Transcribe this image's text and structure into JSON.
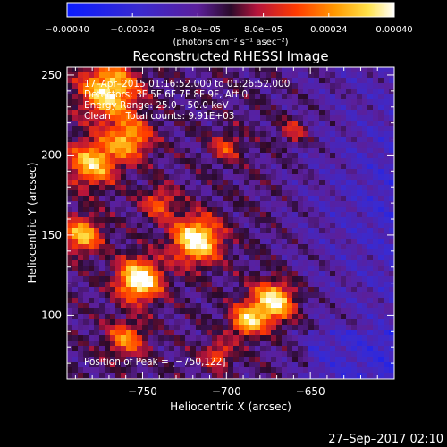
{
  "chart_data": {
    "type": "heatmap",
    "title": "Reconstructed RHESSI Image",
    "xlabel": "Heliocentric X (arcsec)",
    "ylabel": "Heliocentric Y (arcsec)",
    "xlim": [
      -795,
      -600
    ],
    "ylim": [
      60,
      255
    ],
    "x_ticks": [
      -750,
      -700,
      -650
    ],
    "x_tick_labels": [
      "−750",
      "−700",
      "−650"
    ],
    "y_ticks": [
      100,
      150,
      200,
      250
    ],
    "y_tick_labels": [
      "100",
      "150",
      "200",
      "250"
    ],
    "colorbar": {
      "range": [
        -0.0004,
        0.0004
      ],
      "ticks": [
        -0.0004,
        -0.00024,
        -8e-05,
        8e-05,
        0.00024,
        0.0004
      ],
      "tick_labels": [
        "−0.00040",
        "−0.00024",
        "−8.0e−05",
        "8.0e−05",
        "0.00024",
        "0.00040"
      ],
      "units": "(photons cm⁻² s⁻¹ asec⁻²)"
    },
    "annotations": [
      "17–Apr–2015 01:16:52.000 to 01:26:52.000",
      "Detectors: 3F 5F 6F 7F 8F 9F, Att 0",
      "Energy Range: 25.0 – 50.0 keV",
      "Clean     Total counts: 9.91E+03"
    ],
    "peak_label": "Position of Peak = [−750,122]",
    "grid": false
  },
  "footer": {
    "timestamp": "27–Sep–2017 02:10"
  },
  "colors": {
    "background": "#000000",
    "foreground": "#ffffff"
  }
}
